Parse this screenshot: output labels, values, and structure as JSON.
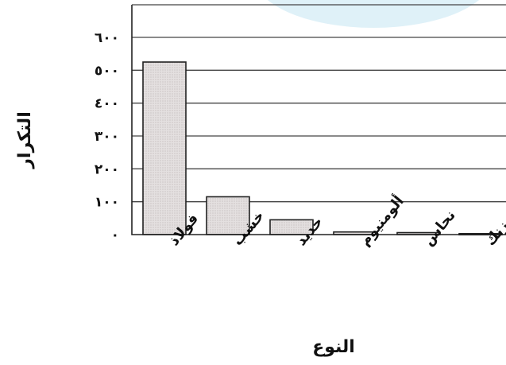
{
  "chart_data": {
    "type": "bar",
    "categories": [
      "فولاذ",
      "خشب",
      "حديد",
      "ألومنيوم",
      "نحاس",
      "زنك"
    ],
    "values": [
      525,
      115,
      45,
      8,
      6,
      3
    ],
    "ylim": [
      0,
      600
    ],
    "yticks": [
      0,
      100,
      200,
      300,
      400,
      500,
      600
    ],
    "ytick_labels": [
      "٠",
      "١٠٠",
      "٢٠٠",
      "٣٠٠",
      "٤٠٠",
      "٥٠٠",
      "٦٠٠"
    ],
    "xlabel": "النوع",
    "ylabel": "التكرار",
    "grid": true,
    "bar_color": "#e4e0e0",
    "bar_stroke": "#222222",
    "accent_color": "#dff1f8"
  }
}
